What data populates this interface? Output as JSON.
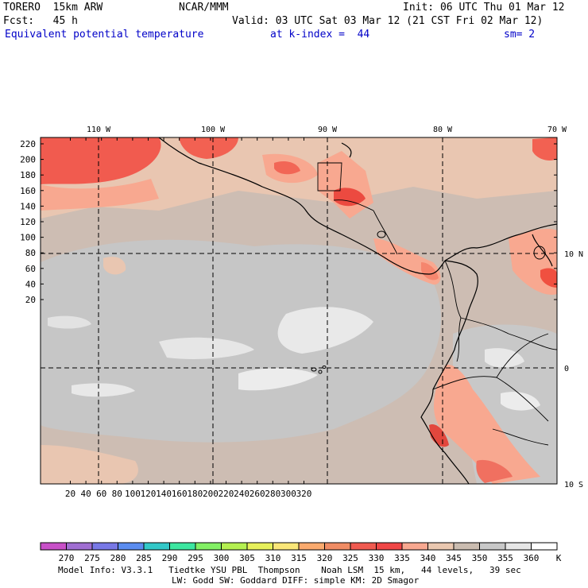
{
  "header": {
    "model": "TORERO  15km ARW",
    "center": "NCAR/MMM",
    "init": "Init: 06 UTC Thu 01 Mar 12",
    "fcst": "Fcst:   45 h",
    "valid": "Valid: 03 UTC Sat 03 Mar 12 (21 CST Fri 02 Mar 12)",
    "field": "Equivalent potential temperature",
    "level": "at k-index =  44",
    "smooth": "sm= 2"
  },
  "map": {
    "lon_labels": [
      "110 W",
      "100 W",
      "90 W",
      "80 W",
      "70 W"
    ],
    "lat_labels": [
      "10 N",
      "0",
      "10 S"
    ],
    "y_ticks": [
      "220",
      "200",
      "180",
      "160",
      "140",
      "120",
      "100",
      "80",
      "60",
      "40",
      "20"
    ],
    "x_ticks": [
      "20",
      "40",
      "60",
      "80",
      "100",
      "120",
      "140",
      "160",
      "180",
      "200",
      "220",
      "240",
      "260",
      "280",
      "300",
      "320"
    ]
  },
  "colorbar": {
    "values": [
      "270",
      "275",
      "280",
      "285",
      "290",
      "295",
      "300",
      "305",
      "310",
      "315",
      "320",
      "325",
      "330",
      "335",
      "340",
      "345",
      "350",
      "355",
      "360"
    ],
    "unit": "K",
    "colors": [
      "#c850c8",
      "#a06ed2",
      "#7878e6",
      "#5a8cf0",
      "#32c8c8",
      "#3ce6a0",
      "#82f064",
      "#b4f050",
      "#e6f05a",
      "#fae678",
      "#faaa6e",
      "#f08c64",
      "#f05a50",
      "#f04646",
      "#f8a890",
      "#eac8b0",
      "#cabcb0",
      "#c8c8c8",
      "#e6e6e6",
      "#ffffff"
    ]
  },
  "footer": {
    "line1": "Model Info: V3.3.1   Tiedtke YSU PBL  Thompson    Noah LSM  15 km,   44 levels,   39 sec",
    "line2": "LW: Godd SW: Goddard DIFF: simple KM: 2D Smagor"
  }
}
